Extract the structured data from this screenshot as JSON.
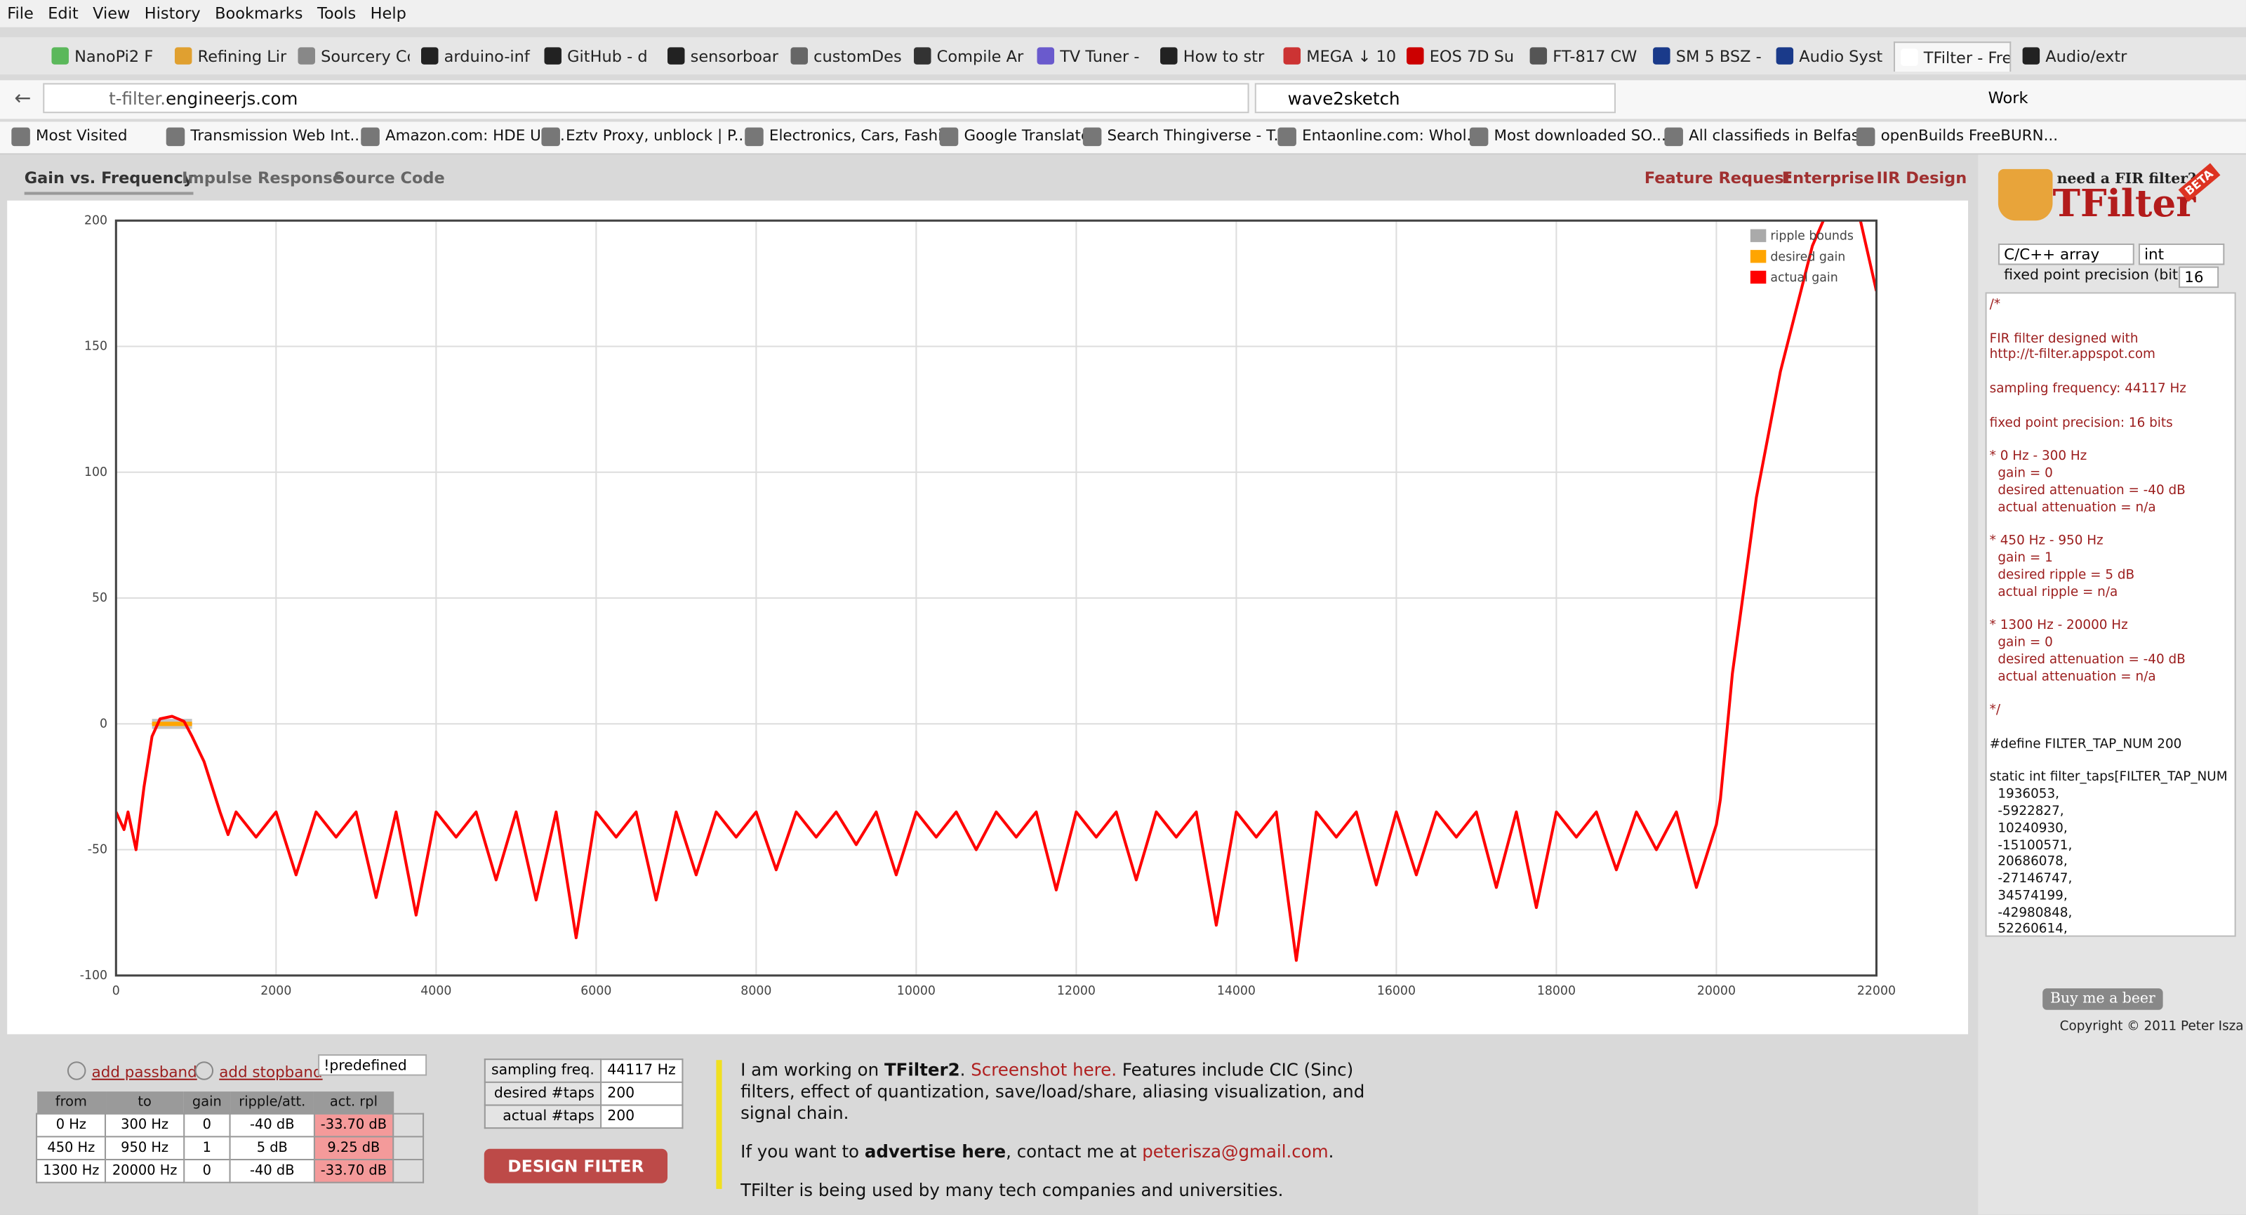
{
  "browser": {
    "menu": [
      "File",
      "Edit",
      "View",
      "History",
      "Bookmarks",
      "Tools",
      "Help"
    ],
    "tabs": [
      "NanoPi2  F",
      "Refining Lin",
      "Sourcery CodeB",
      "arduino-inf",
      "GitHub - d",
      "sensorboar",
      "customDesignT",
      "Compile Ar",
      "TV Tuner -",
      "How to str",
      "MEGA ↓ 10",
      "EOS 7D Su",
      "FT-817 CW",
      "SM 5 BSZ -",
      "Audio Syst",
      "TFilter - Fre",
      "Audio/extr"
    ],
    "active_tab": 15,
    "url_sub": "t-filter.",
    "url_domain": "engineerjs.com",
    "search": "wave2sketch",
    "profile": "Work",
    "bookmarks": [
      "Most Visited",
      "Transmission Web Int...",
      "Amazon.com: HDE US...",
      "Eztv Proxy, unblock | P...",
      "Electronics, Cars, Fashi...",
      "Google Translate",
      "Search Thingiverse - T...",
      "Entaonline.com: Whol...",
      "Most downloaded SO...",
      "All classifieds in Belfas...",
      "openBuilds FreeBURN..."
    ]
  },
  "nav": {
    "left": [
      "Gain vs. Frequency",
      "Impulse Response",
      "Source Code"
    ],
    "right": [
      "Feature Request",
      "Enterprise",
      "IIR Design"
    ]
  },
  "chart_data": {
    "type": "line",
    "xlim": [
      0,
      22000
    ],
    "ylim": [
      -100,
      200
    ],
    "xticks": [
      0,
      2000,
      4000,
      6000,
      8000,
      10000,
      12000,
      14000,
      16000,
      18000,
      20000,
      22000
    ],
    "yticks": [
      -100,
      -50,
      0,
      50,
      100,
      150,
      200
    ],
    "grid": true,
    "legend": "upper right",
    "series": [
      {
        "name": "ripple bounds",
        "color": "#aaaaaa",
        "x": [
          450,
          950
        ],
        "upper": [
          2,
          2
        ],
        "lower": [
          -2,
          -2
        ]
      },
      {
        "name": "desired gain",
        "color": "#ffa500",
        "x": [
          450,
          950
        ],
        "values": [
          0,
          0
        ]
      },
      {
        "name": "actual gain",
        "color": "#ff0000",
        "x": [
          0,
          100,
          150,
          250,
          350,
          450,
          550,
          700,
          850,
          950,
          1100,
          1200,
          1300,
          1400,
          1500,
          1750,
          2000,
          2250,
          2500,
          2750,
          3000,
          3250,
          3500,
          3750,
          4000,
          4250,
          4500,
          4750,
          5000,
          5250,
          5500,
          5750,
          6000,
          6250,
          6500,
          6750,
          7000,
          7250,
          7500,
          7750,
          8000,
          8250,
          8500,
          8750,
          9000,
          9250,
          9500,
          9750,
          10000,
          10250,
          10500,
          10750,
          11000,
          11250,
          11500,
          11750,
          12000,
          12250,
          12500,
          12750,
          13000,
          13250,
          13500,
          13750,
          14000,
          14250,
          14500,
          14750,
          15000,
          15250,
          15500,
          15750,
          16000,
          16250,
          16500,
          16750,
          17000,
          17250,
          17500,
          17750,
          18000,
          18250,
          18500,
          18750,
          19000,
          19250,
          19500,
          19750,
          20000,
          20050,
          20200,
          20500,
          20800,
          21000,
          21200,
          21500,
          21800,
          22000
        ],
        "values": [
          -35,
          -42,
          -35,
          -50,
          -25,
          -5,
          2,
          3,
          1,
          -5,
          -15,
          -25,
          -35,
          -44,
          -35,
          -45,
          -35,
          -60,
          -35,
          -45,
          -35,
          -69,
          -35,
          -76,
          -35,
          -45,
          -35,
          -62,
          -35,
          -70,
          -35,
          -85,
          -35,
          -45,
          -35,
          -70,
          -35,
          -60,
          -35,
          -45,
          -35,
          -58,
          -35,
          -45,
          -35,
          -48,
          -35,
          -60,
          -35,
          -45,
          -35,
          -50,
          -35,
          -45,
          -35,
          -66,
          -35,
          -45,
          -35,
          -62,
          -35,
          -45,
          -35,
          -80,
          -35,
          -45,
          -35,
          -94,
          -35,
          -45,
          -35,
          -64,
          -35,
          -60,
          -35,
          -45,
          -35,
          -65,
          -35,
          -73,
          -35,
          -45,
          -35,
          -58,
          -35,
          -50,
          -35,
          -65,
          -40,
          -30,
          20,
          90,
          140,
          165,
          190,
          212,
          200,
          172
        ]
      }
    ]
  },
  "sidebar": {
    "tagline": "need a FIR filter?",
    "logo": "TFilter",
    "badge": "BETA",
    "format": "C/C++ array",
    "number_type": "int",
    "precision_label": "fixed point precision (bits):",
    "precision": "16",
    "code": [
      [
        "/*"
      ],
      [
        "FIR filter designed with",
        "http://t-filter.appspot.com"
      ],
      [
        "sampling frequency: 44117 Hz"
      ],
      [
        "fixed point precision: 16 bits"
      ],
      [
        "* 0 Hz - 300 Hz",
        "  gain = 0",
        "  desired attenuation = -40 dB",
        "  actual attenuation = n/a"
      ],
      [
        "* 450 Hz - 950 Hz",
        "  gain = 1",
        "  desired ripple = 5 dB",
        "  actual ripple = n/a"
      ],
      [
        "* 1300 Hz - 20000 Hz",
        "  gain = 0",
        "  desired attenuation = -40 dB",
        "  actual attenuation = n/a"
      ],
      [
        "*/"
      ],
      [
        "#define FILTER_TAP_NUM 200"
      ],
      [
        "static int filter_taps[FILTER_TAP_NUM",
        "  1936053,",
        "  -5922827,",
        "  10240930,",
        "  -15100571,",
        "  20686078,",
        "  -27146747,",
        "  34574199,",
        "  -42980848,",
        "  52260614,"
      ]
    ],
    "beer": "Buy me a beer",
    "copyright": "Copyright © 2011 Peter Isza"
  },
  "controls": {
    "add_passband": "add passband",
    "add_stopband": "add stopband",
    "predefined": "!predefined",
    "table": {
      "headers": [
        "from",
        "to",
        "gain",
        "ripple/att.",
        "act. rpl"
      ],
      "rows": [
        [
          "0 Hz",
          "300 Hz",
          "0",
          "-40 dB",
          "-33.70 dB"
        ],
        [
          "450 Hz",
          "950 Hz",
          "1",
          "5 dB",
          "9.25 dB"
        ],
        [
          "1300 Hz",
          "20000 Hz",
          "0",
          "-40 dB",
          "-33.70 dB"
        ]
      ]
    },
    "params": [
      {
        "label": "sampling freq.",
        "value": "44117 Hz"
      },
      {
        "label": "desired #taps",
        "value": "200"
      },
      {
        "label": "actual #taps",
        "value": "200"
      }
    ],
    "design": "DESIGN FILTER"
  },
  "info": {
    "p1": [
      "I am working on ",
      "TFilter2",
      ". ",
      "Screenshot here.",
      " Features include CIC (Sinc) filters, effect of quantization, save/load/share, aliasing visualization, and signal chain."
    ],
    "p2": [
      "If you want to ",
      "advertise here",
      ", contact me at ",
      "peterisza@gmail.com",
      "."
    ],
    "p3": "TFilter is being used by many tech companies and universities."
  }
}
